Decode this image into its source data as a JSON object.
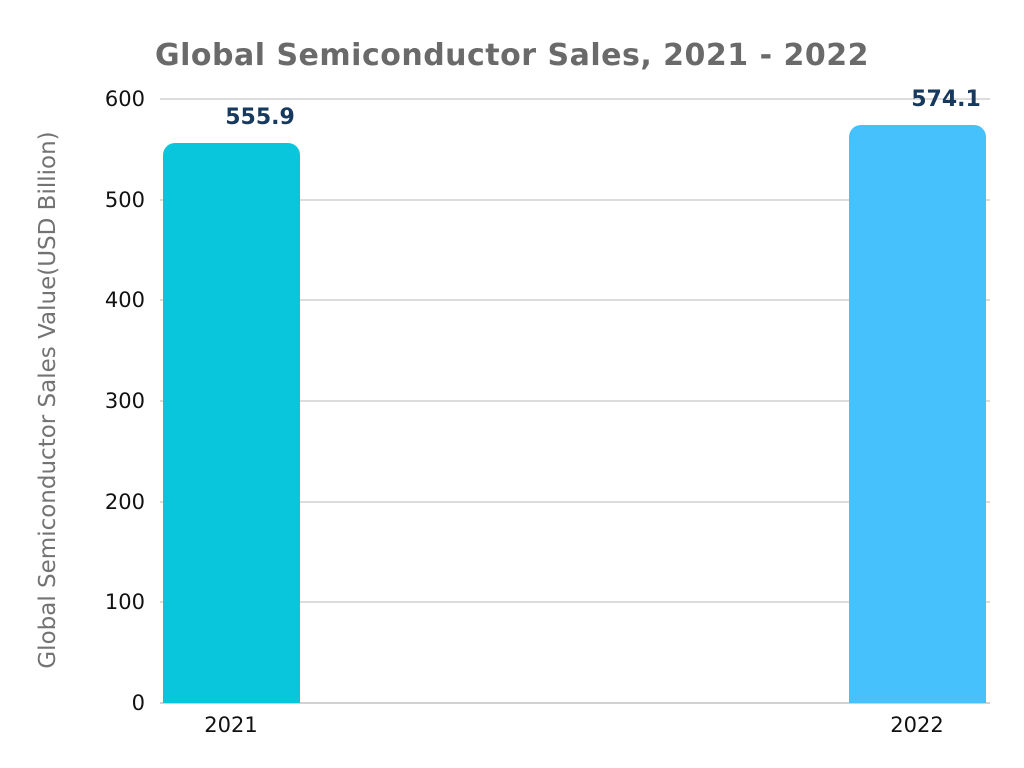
{
  "chart_data": {
    "type": "bar",
    "title": "Global Semiconductor Sales, 2021 - 2022",
    "xlabel": "",
    "ylabel": "Global Semiconductor Sales Value(USD Billion)",
    "categories": [
      "2021",
      "2022"
    ],
    "values": [
      555.9,
      574.1
    ],
    "value_labels": [
      "555.9",
      "574.1"
    ],
    "ylim": [
      0,
      600
    ],
    "yticks": [
      0,
      100,
      200,
      300,
      400,
      500,
      600
    ],
    "grid": true,
    "legend": false,
    "colors": {
      "bar_2021": "#0AC6DC",
      "bar_2022": "#47C1FB",
      "value_label": "#17395E",
      "title": "#6A6A6A",
      "axis_title": "#737373",
      "tick_label": "#111111",
      "gridline": "#DCDCDC",
      "baseline": "#D2D2D2"
    }
  }
}
